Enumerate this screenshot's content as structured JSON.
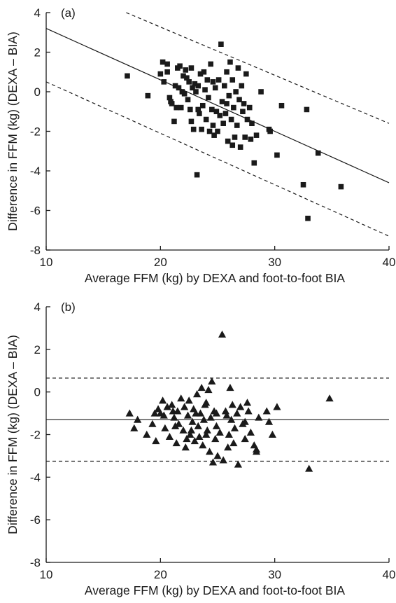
{
  "chart_data": [
    {
      "type": "scatter",
      "panel_label": "(a)",
      "xlabel": "Average FFM (kg) by DEXA and foot-to-foot BIA",
      "ylabel": "Difference in FFM (kg) (DEXA – BIA)",
      "xlim": [
        10,
        40
      ],
      "ylim": [
        -8,
        4
      ],
      "xticks": [
        10,
        20,
        30,
        40
      ],
      "yticks": [
        -8,
        -6,
        -4,
        -2,
        0,
        2,
        4
      ],
      "grid": false,
      "marker": "square",
      "color": "#1a1a1a",
      "points": [
        [
          17.1,
          0.8
        ],
        [
          18.9,
          -0.2
        ],
        [
          20.0,
          0.9
        ],
        [
          20.2,
          1.5
        ],
        [
          20.3,
          0.5
        ],
        [
          20.6,
          1.0
        ],
        [
          20.8,
          -0.3
        ],
        [
          20.9,
          -0.5
        ],
        [
          21.0,
          -0.6
        ],
        [
          21.2,
          -1.5
        ],
        [
          21.3,
          0.3
        ],
        [
          21.5,
          1.2
        ],
        [
          21.6,
          0.2
        ],
        [
          21.7,
          1.3
        ],
        [
          21.8,
          -0.8
        ],
        [
          21.9,
          0.0
        ],
        [
          22.0,
          0.8
        ],
        [
          22.1,
          -0.1
        ],
        [
          22.2,
          1.1
        ],
        [
          22.3,
          0.7
        ],
        [
          22.4,
          -0.4
        ],
        [
          22.5,
          0.5
        ],
        [
          22.6,
          -0.9
        ],
        [
          22.7,
          1.2
        ],
        [
          22.8,
          0.2
        ],
        [
          22.9,
          -1.9
        ],
        [
          23.0,
          0.4
        ],
        [
          23.1,
          0.0
        ],
        [
          23.2,
          -4.2
        ],
        [
          23.3,
          0.3
        ],
        [
          23.4,
          -1.1
        ],
        [
          23.5,
          0.9
        ],
        [
          23.6,
          -1.9
        ],
        [
          23.7,
          -0.7
        ],
        [
          23.8,
          1.0
        ],
        [
          23.9,
          0.1
        ],
        [
          24.0,
          -1.4
        ],
        [
          24.1,
          0.6
        ],
        [
          24.2,
          -0.3
        ],
        [
          24.3,
          -2.0
        ],
        [
          24.4,
          1.4
        ],
        [
          24.5,
          -0.9
        ],
        [
          24.6,
          0.5
        ],
        [
          24.7,
          -2.2
        ],
        [
          24.8,
          0.2
        ],
        [
          24.9,
          -1.0
        ],
        [
          25.0,
          -2.0
        ],
        [
          25.1,
          0.6
        ],
        [
          25.2,
          -1.2
        ],
        [
          25.3,
          2.4
        ],
        [
          25.4,
          -0.5
        ],
        [
          25.5,
          -1.6
        ],
        [
          25.6,
          0.3
        ],
        [
          25.7,
          -1.1
        ],
        [
          25.8,
          1.0
        ],
        [
          25.9,
          -2.5
        ],
        [
          26.0,
          -0.2
        ],
        [
          26.1,
          1.5
        ],
        [
          26.2,
          -1.4
        ],
        [
          26.3,
          0.6
        ],
        [
          26.4,
          -0.8
        ],
        [
          26.5,
          -2.3
        ],
        [
          26.6,
          0.0
        ],
        [
          26.7,
          -1.7
        ],
        [
          26.8,
          1.2
        ],
        [
          26.9,
          -0.4
        ],
        [
          27.0,
          -2.8
        ],
        [
          27.1,
          0.3
        ],
        [
          27.2,
          -1.0
        ],
        [
          27.3,
          -0.6
        ],
        [
          27.4,
          -2.3
        ],
        [
          27.5,
          0.9
        ],
        [
          27.6,
          -1.4
        ],
        [
          27.8,
          -0.8
        ],
        [
          28.0,
          -1.6
        ],
        [
          28.2,
          -3.6
        ],
        [
          28.4,
          -2.2
        ],
        [
          28.8,
          0.0
        ],
        [
          29.5,
          -1.9
        ],
        [
          29.6,
          -2.0
        ],
        [
          30.2,
          -3.2
        ],
        [
          30.6,
          -0.7
        ],
        [
          32.5,
          -4.7
        ],
        [
          32.8,
          -0.9
        ],
        [
          32.9,
          -6.4
        ],
        [
          33.8,
          -3.1
        ],
        [
          35.8,
          -4.8
        ],
        [
          21.4,
          -0.8
        ],
        [
          22.7,
          -1.5
        ],
        [
          24.6,
          -1.7
        ],
        [
          26.3,
          -2.7
        ],
        [
          27.9,
          -2.4
        ],
        [
          23.3,
          -0.9
        ],
        [
          25.8,
          -0.6
        ],
        [
          20.6,
          1.4
        ]
      ],
      "lines": [
        {
          "name": "regression",
          "style": "solid",
          "from": [
            10,
            3.2
          ],
          "to": [
            40,
            -4.6
          ]
        },
        {
          "name": "upper limit",
          "style": "dashed",
          "from": [
            17,
            4.0
          ],
          "to": [
            40,
            -1.6
          ]
        },
        {
          "name": "lower limit",
          "style": "dashed",
          "from": [
            10,
            0.5
          ],
          "to": [
            40,
            -7.3
          ]
        }
      ]
    },
    {
      "type": "scatter",
      "panel_label": "(b)",
      "xlabel": "Average FFM (kg) by DEXA and foot-to-foot BIA",
      "ylabel": "Difference in FFM (kg) (DEXA – BIA)",
      "xlim": [
        10,
        40
      ],
      "ylim": [
        -8,
        4
      ],
      "xticks": [
        10,
        20,
        30,
        40
      ],
      "yticks": [
        -8,
        -6,
        -4,
        -2,
        0,
        2,
        4
      ],
      "grid": false,
      "marker": "triangle",
      "color": "#1a1a1a",
      "points": [
        [
          17.3,
          -1.0
        ],
        [
          17.7,
          -1.7
        ],
        [
          18.0,
          -1.3
        ],
        [
          18.8,
          -2.0
        ],
        [
          19.3,
          -1.5
        ],
        [
          19.6,
          -2.3
        ],
        [
          19.8,
          -0.8
        ],
        [
          20.0,
          -1.0
        ],
        [
          20.2,
          -0.4
        ],
        [
          20.4,
          -1.7
        ],
        [
          20.6,
          -0.7
        ],
        [
          20.8,
          -2.1
        ],
        [
          21.0,
          -0.6
        ],
        [
          21.2,
          -1.2
        ],
        [
          21.4,
          -2.4
        ],
        [
          21.5,
          -0.9
        ],
        [
          21.6,
          -1.5
        ],
        [
          21.8,
          -0.3
        ],
        [
          22.0,
          -1.8
        ],
        [
          22.1,
          -0.7
        ],
        [
          22.2,
          -2.6
        ],
        [
          22.4,
          -1.1
        ],
        [
          22.5,
          -0.4
        ],
        [
          22.6,
          -2.0
        ],
        [
          22.8,
          -1.4
        ],
        [
          22.9,
          -0.8
        ],
        [
          23.0,
          -2.3
        ],
        [
          23.2,
          -0.1
        ],
        [
          23.3,
          -1.6
        ],
        [
          23.5,
          -1.0
        ],
        [
          23.6,
          0.2
        ],
        [
          23.7,
          -2.5
        ],
        [
          23.8,
          -1.3
        ],
        [
          23.9,
          -0.6
        ],
        [
          24.0,
          -2.0
        ],
        [
          24.1,
          -1.8
        ],
        [
          24.2,
          0.1
        ],
        [
          24.3,
          -2.8
        ],
        [
          24.4,
          -1.2
        ],
        [
          24.5,
          0.5
        ],
        [
          24.6,
          -3.3
        ],
        [
          24.7,
          -0.9
        ],
        [
          24.8,
          -2.2
        ],
        [
          24.9,
          -1.6
        ],
        [
          25.0,
          -3.0
        ],
        [
          25.4,
          2.7
        ],
        [
          25.5,
          -3.2
        ],
        [
          25.7,
          -0.9
        ],
        [
          25.9,
          -2.6
        ],
        [
          26.1,
          0.2
        ],
        [
          26.2,
          -1.3
        ],
        [
          26.3,
          -0.6
        ],
        [
          26.4,
          -2.4
        ],
        [
          26.7,
          -1.0
        ],
        [
          26.8,
          -3.4
        ],
        [
          27.0,
          -0.7
        ],
        [
          27.2,
          -1.5
        ],
        [
          27.4,
          -2.2
        ],
        [
          27.7,
          -0.9
        ],
        [
          27.9,
          -1.9
        ],
        [
          28.2,
          -2.5
        ],
        [
          28.4,
          -2.7
        ],
        [
          28.6,
          -1.2
        ],
        [
          29.3,
          -0.9
        ],
        [
          29.5,
          -1.4
        ],
        [
          29.8,
          -2.0
        ],
        [
          30.2,
          -0.7
        ],
        [
          33.0,
          -3.6
        ],
        [
          34.8,
          -0.3
        ],
        [
          20.3,
          -1.1
        ],
        [
          21.3,
          -1.6
        ],
        [
          22.7,
          -1.8
        ],
        [
          23.4,
          -2.1
        ],
        [
          24.0,
          -0.5
        ],
        [
          25.2,
          -1.9
        ],
        [
          26.5,
          -1.7
        ],
        [
          27.4,
          -1.4
        ],
        [
          28.4,
          -2.8
        ],
        [
          19.5,
          -1.0
        ],
        [
          22.3,
          -2.2
        ],
        [
          24.9,
          -1.0
        ],
        [
          26.0,
          -2.0
        ],
        [
          23.1,
          -1.0
        ],
        [
          21.1,
          -0.9
        ],
        [
          25.8,
          -1.1
        ],
        [
          27.6,
          -0.5
        ]
      ],
      "lines": [
        {
          "name": "mean difference",
          "style": "solid",
          "from": [
            10,
            -1.3
          ],
          "to": [
            40,
            -1.3
          ]
        },
        {
          "name": "upper limit",
          "style": "dashed",
          "from": [
            10,
            0.65
          ],
          "to": [
            40,
            0.65
          ]
        },
        {
          "name": "lower limit",
          "style": "dashed",
          "from": [
            10,
            -3.25
          ],
          "to": [
            40,
            -3.25
          ]
        }
      ]
    }
  ]
}
